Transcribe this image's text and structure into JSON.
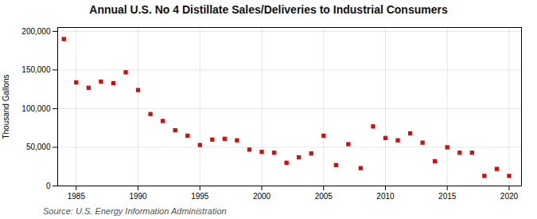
{
  "chart_data": {
    "type": "scatter",
    "title": "Annual U.S. No 4 Distillate Sales/Deliveries to Industrial Consumers",
    "ylabel": "Thousand Gallons",
    "annotations": [
      "Source: U.S. Energy Information Administration"
    ],
    "x": [
      1984,
      1985,
      1986,
      1987,
      1988,
      1989,
      1990,
      1991,
      1992,
      1993,
      1994,
      1995,
      1996,
      1997,
      1998,
      1999,
      2000,
      2001,
      2002,
      2003,
      2004,
      2005,
      2006,
      2007,
      2008,
      2009,
      2010,
      2011,
      2012,
      2013,
      2014,
      2015,
      2016,
      2017,
      2018,
      2019,
      2020
    ],
    "values": [
      190000,
      134000,
      127000,
      135000,
      133000,
      147000,
      124000,
      93000,
      84000,
      72000,
      65000,
      53000,
      60000,
      61000,
      59000,
      47000,
      44000,
      43000,
      30000,
      37000,
      42000,
      65000,
      27000,
      54000,
      23000,
      77000,
      62000,
      59000,
      68000,
      56000,
      32000,
      50000,
      43000,
      43000,
      13000,
      22000,
      13000
    ],
    "color": "#cc1111",
    "marker": "square",
    "xlim": [
      1983.5,
      2021
    ],
    "xticks": [
      1985,
      1990,
      1995,
      2000,
      2005,
      2010,
      2015,
      2020
    ],
    "ylim": [
      0,
      205000
    ],
    "yticks": [
      0,
      {
        "value": 50000,
        "label": "50,000"
      },
      {
        "value": 100000,
        "label": "100,000"
      },
      {
        "value": 150000,
        "label": "150,000"
      },
      {
        "value": 200000,
        "label": "200,000"
      }
    ],
    "grid": true
  }
}
